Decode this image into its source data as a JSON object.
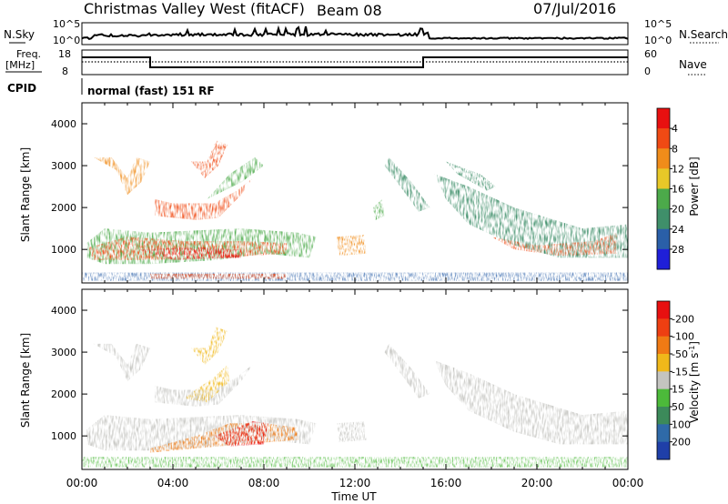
{
  "header": {
    "title": "Christmas Valley West (fitACF)",
    "beam": "Beam 08",
    "date": "07/Jul/2016"
  },
  "top_panels": {
    "nsky": {
      "label": "N.Sky",
      "left_ticks": [
        "10^5",
        "10^0"
      ],
      "right_label": "N.Search",
      "right_ticks": [
        "10^5",
        "10^0"
      ]
    },
    "freq": {
      "label_line1": "Freq.",
      "label_line2": "[MHz]",
      "left_ticks": [
        "18",
        "8"
      ],
      "right_label": "Nave",
      "right_ticks": [
        "60",
        "0"
      ]
    },
    "cpid": {
      "label": "CPID",
      "value": "normal (fast) 151 RF"
    }
  },
  "chart_data": [
    {
      "type": "heatmap",
      "name": "power",
      "ylabel": "Slant Range [km]",
      "xlabel": "",
      "x_ticks": [
        "00:00",
        "04:00",
        "08:00",
        "12:00",
        "16:00",
        "20:00",
        "00:00"
      ],
      "y_ticks": [
        1000,
        2000,
        3000,
        4000
      ],
      "ylim": [
        200,
        4500
      ],
      "colorbar": {
        "label": "Power [dB]",
        "ticks": [
          "4",
          "8",
          "12",
          "16",
          "20",
          "24",
          "28"
        ],
        "colors": [
          "#1f1fd8",
          "#2a5fa8",
          "#3f8f6a",
          "#4caa4a",
          "#e8c828",
          "#f08c1a",
          "#f04a14",
          "#e81010"
        ]
      }
    },
    {
      "type": "heatmap",
      "name": "velocity",
      "ylabel": "Slant Range [km]",
      "xlabel": "Time UT",
      "x_ticks": [
        "00:00",
        "04:00",
        "08:00",
        "12:00",
        "16:00",
        "20:00",
        "00:00"
      ],
      "y_ticks": [
        1000,
        2000,
        3000,
        4000
      ],
      "ylim": [
        200,
        4500
      ],
      "colorbar": {
        "label": "Velocity [m s^-1]",
        "ticks": [
          "200",
          "100",
          "50",
          "15",
          "-15",
          "-50",
          "-100",
          "-200"
        ],
        "colors": [
          "#1f3fa8",
          "#2f6aa8",
          "#3c8a5a",
          "#4cba3a",
          "#c4c4c0",
          "#f0b81a",
          "#f07a14",
          "#ee3f12",
          "#e81010"
        ]
      }
    }
  ]
}
